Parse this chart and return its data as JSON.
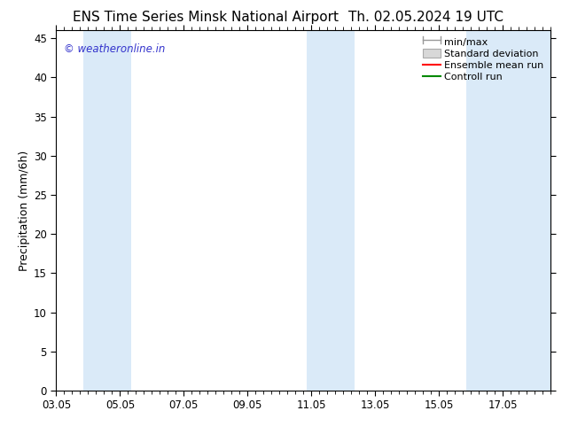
{
  "title_left": "ENS Time Series Minsk National Airport",
  "title_right": "Th. 02.05.2024 19 UTC",
  "ylabel": "Precipitation (mm/6h)",
  "xlim_labels": [
    "03.05",
    "05.05",
    "07.05",
    "09.05",
    "11.05",
    "13.05",
    "15.05",
    "17.05"
  ],
  "xlim": [
    0,
    15.5
  ],
  "ylim": [
    0,
    46
  ],
  "yticks": [
    0,
    5,
    10,
    15,
    20,
    25,
    30,
    35,
    40,
    45
  ],
  "background_color": "#ffffff",
  "plot_bg_color": "#ffffff",
  "watermark": "© weatheronline.in",
  "watermark_color": "#3333cc",
  "shaded_bands": [
    {
      "x_start": 0.85,
      "x_end": 2.35,
      "color": "#daeaf8"
    },
    {
      "x_start": 7.85,
      "x_end": 9.35,
      "color": "#daeaf8"
    },
    {
      "x_start": 12.85,
      "x_end": 15.5,
      "color": "#daeaf8"
    }
  ],
  "x_tick_positions": [
    0,
    2,
    4,
    6,
    8,
    10,
    12,
    14
  ],
  "legend_items": [
    {
      "label": "min/max",
      "type": "minmax",
      "color": "#aaaaaa"
    },
    {
      "label": "Standard deviation",
      "type": "bar",
      "color": "#cccccc"
    },
    {
      "label": "Ensemble mean run",
      "type": "line",
      "color": "#ff0000"
    },
    {
      "label": "Controll run",
      "type": "line",
      "color": "#008800"
    }
  ],
  "title_fontsize": 11,
  "tick_fontsize": 8.5,
  "legend_fontsize": 8,
  "ylabel_fontsize": 9
}
